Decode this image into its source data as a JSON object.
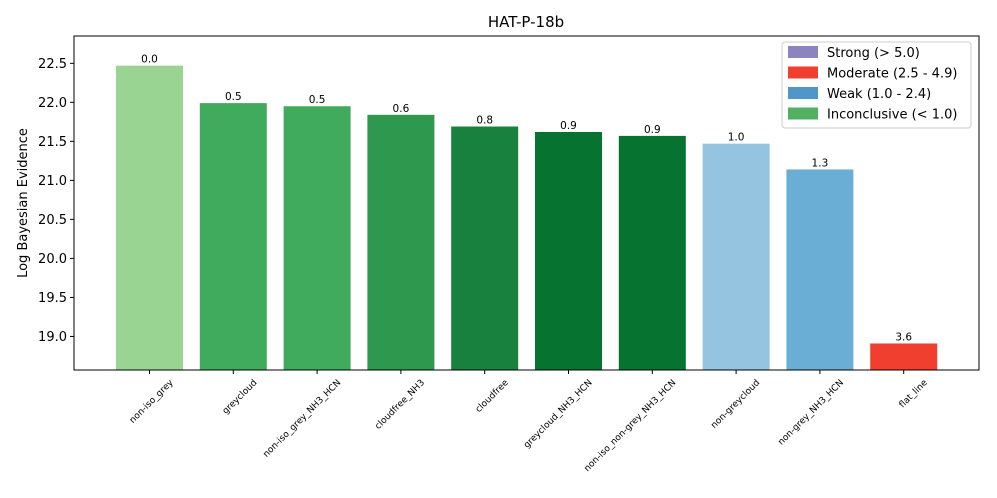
{
  "chart_data": {
    "type": "bar",
    "title": "HAT-P-18b",
    "xlabel": "",
    "ylabel": "Log Bayesian Evidence",
    "ylim": [
      18.57,
      22.85
    ],
    "yticks": [
      "19.0",
      "19.5",
      "20.0",
      "20.5",
      "21.0",
      "21.5",
      "22.0",
      "22.5"
    ],
    "categories": [
      "non-iso_grey",
      "greycloud",
      "non-iso_grey_NH3_HCN",
      "cloudfree_NH3",
      "cloudfree",
      "greycloud_NH3_HCN",
      "non-iso_non-grey_NH3_HCN",
      "non-greycloud",
      "non-grey_NH3_HCN",
      "flat_line"
    ],
    "values": [
      22.47,
      21.99,
      21.95,
      21.84,
      21.69,
      21.62,
      21.57,
      21.47,
      21.14,
      18.91
    ],
    "bar_labels": [
      "0.0",
      "0.5",
      "0.5",
      "0.6",
      "0.8",
      "0.9",
      "0.9",
      "1.0",
      "1.3",
      "3.6"
    ],
    "bar_colors": [
      "#9ad493",
      "#41ab5d",
      "#41ab5d",
      "#2f984f",
      "#17813d",
      "#077331",
      "#077331",
      "#94c4df",
      "#6aaed6",
      "#f03f2e"
    ],
    "grid": false,
    "legend": {
      "placement": "top-right",
      "entries": [
        {
          "label": "Strong (> 5.0)",
          "color": "#8c84c0"
        },
        {
          "label": "Moderate (2.5 - 4.9)",
          "color": "#f03f2e"
        },
        {
          "label": "Weak (1.0 - 2.4)",
          "color": "#4f97c9"
        },
        {
          "label": "Inconclusive (< 1.0)",
          "color": "#52b062"
        }
      ]
    }
  }
}
